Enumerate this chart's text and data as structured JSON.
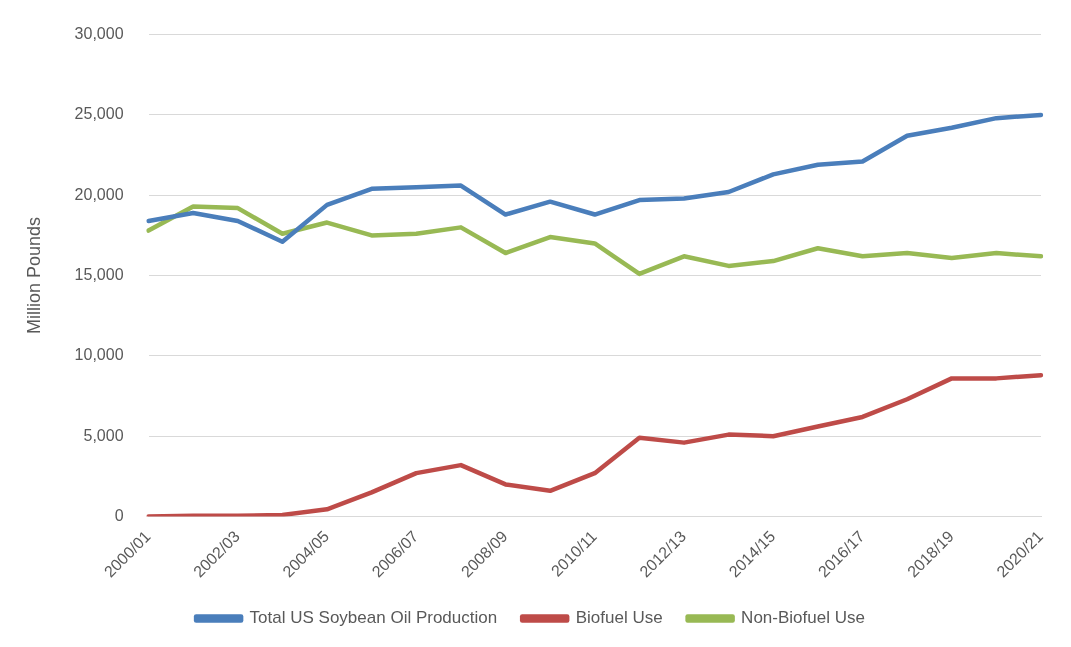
{
  "chart_data": {
    "type": "line",
    "ylabel": "Million Pounds",
    "categories": [
      "2000/01",
      null,
      "2002/03",
      null,
      "2004/05",
      null,
      "2006/07",
      null,
      "2008/09",
      null,
      "2010/11",
      null,
      "2012/13",
      null,
      "2014/15",
      null,
      "2016/17",
      null,
      "2018/19",
      null,
      "2020/21"
    ],
    "series": [
      {
        "name": "Total US Soybean Oil Production",
        "color": "#4a7ebb",
        "values": [
          18400,
          18900,
          18400,
          17100,
          19400,
          20400,
          20500,
          20600,
          18800,
          19600,
          18800,
          19700,
          19800,
          20200,
          21300,
          21900,
          22100,
          23700,
          24200,
          24800,
          25000
        ]
      },
      {
        "name": "Biofuel Use",
        "color": "#be4b48",
        "values": [
          0,
          50,
          50,
          100,
          450,
          1500,
          2700,
          3200,
          2000,
          1600,
          2700,
          4900,
          4600,
          5100,
          5000,
          5600,
          6200,
          7300,
          8600,
          8600,
          8800
        ]
      },
      {
        "name": "Non-Biofuel Use",
        "color": "#98b954",
        "values": [
          17800,
          19300,
          19200,
          17600,
          18300,
          17500,
          17600,
          18000,
          16400,
          17400,
          17000,
          15100,
          16200,
          15600,
          15900,
          16700,
          16200,
          16400,
          16100,
          16400,
          16200
        ]
      }
    ],
    "ylim": [
      0,
      30000
    ],
    "yticks": [
      {
        "value": 0,
        "label": "0"
      },
      {
        "value": 5000,
        "label": "5,000"
      },
      {
        "value": 10000,
        "label": "10,000"
      },
      {
        "value": 15000,
        "label": "15,000"
      },
      {
        "value": 20000,
        "label": "20,000"
      },
      {
        "value": 25000,
        "label": "25,000"
      },
      {
        "value": 30000,
        "label": "30,000"
      }
    ],
    "grid": "y",
    "legend": "bottom",
    "marker": "none",
    "line_style": "solid"
  }
}
